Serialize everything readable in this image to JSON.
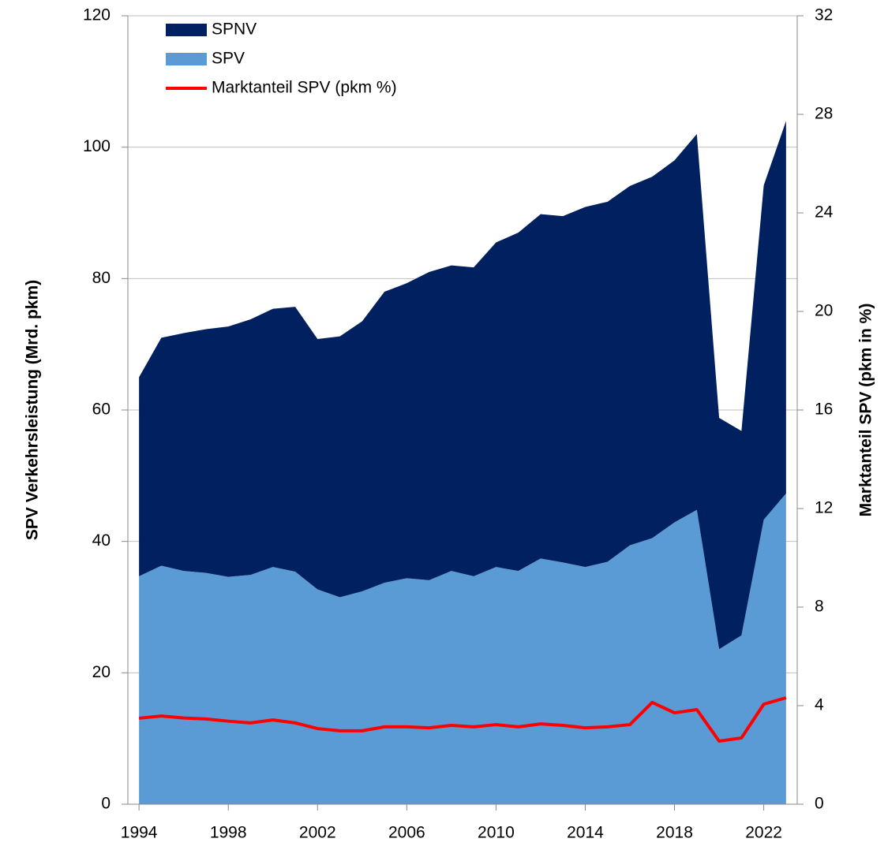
{
  "chart_data": {
    "type": "area",
    "stacked": true,
    "y_label": "SPV Verkehrsleistung (Mrd. pkm)",
    "y2_label": "Marktanteil SPV (pkm in %)",
    "x": [
      1994,
      1995,
      1996,
      1997,
      1998,
      1999,
      2000,
      2001,
      2002,
      2003,
      2004,
      2005,
      2006,
      2007,
      2008,
      2009,
      2010,
      2011,
      2012,
      2013,
      2014,
      2015,
      2016,
      2017,
      2018,
      2019,
      2020,
      2021,
      2022,
      2023
    ],
    "xlim": [
      1993.5,
      2023.5
    ],
    "xticks": [
      1994,
      1998,
      2002,
      2006,
      2010,
      2014,
      2018,
      2022
    ],
    "ylim": [
      0,
      120
    ],
    "yticks": [
      0,
      20,
      40,
      60,
      80,
      100,
      120
    ],
    "y2lim": [
      0,
      32
    ],
    "y2ticks": [
      0,
      4,
      8,
      12,
      16,
      20,
      24,
      28,
      32
    ],
    "grid": true,
    "legend": "top-left",
    "series": [
      {
        "name": "SPV",
        "color": "#5b9bd5",
        "type": "area",
        "values": [
          34.7,
          36.3,
          35.5,
          35.2,
          34.6,
          34.9,
          36.1,
          35.4,
          32.7,
          31.5,
          32.4,
          33.7,
          34.4,
          34.1,
          35.5,
          34.7,
          36.1,
          35.5,
          37.4,
          36.8,
          36.1,
          36.9,
          39.4,
          40.5,
          42.9,
          44.8,
          23.6,
          25.7,
          43.3,
          47.3
        ]
      },
      {
        "name": "SPNV",
        "color": "#002060",
        "type": "area",
        "values": [
          30.3,
          34.7,
          36.2,
          37.1,
          38.1,
          38.9,
          39.3,
          40.3,
          38.1,
          39.7,
          41.1,
          44.3,
          44.9,
          46.9,
          46.5,
          47.0,
          49.4,
          51.5,
          52.4,
          52.7,
          54.8,
          54.8,
          54.7,
          55.0,
          55.1,
          57.2,
          35.2,
          31.1,
          50.9,
          56.7
        ]
      },
      {
        "name": "Marktanteil SPV (pkm %)",
        "color": "#ff0000",
        "type": "line",
        "axis": "y2",
        "values": [
          3.49,
          3.58,
          3.5,
          3.46,
          3.37,
          3.3,
          3.42,
          3.3,
          3.07,
          2.98,
          2.98,
          3.14,
          3.14,
          3.1,
          3.2,
          3.14,
          3.23,
          3.14,
          3.26,
          3.2,
          3.1,
          3.14,
          3.23,
          4.13,
          3.71,
          3.84,
          2.56,
          2.69,
          4.06,
          4.32
        ]
      }
    ]
  }
}
